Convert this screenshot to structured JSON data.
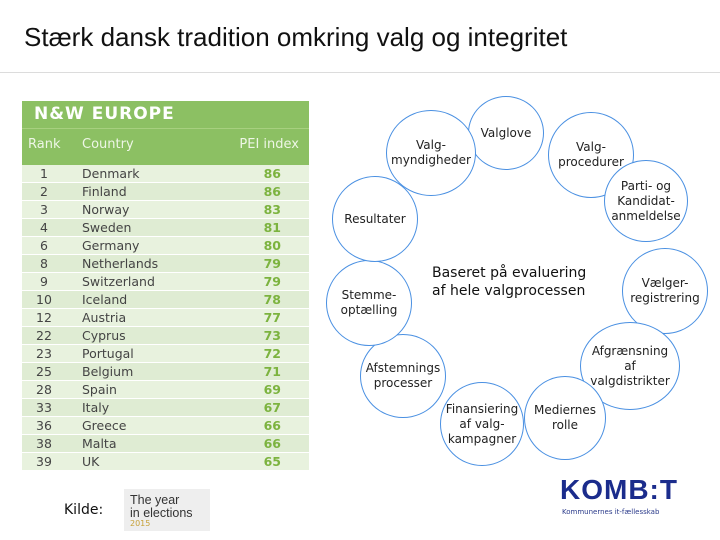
{
  "title": "Stærk dansk tradition omkring valg og integritet",
  "table": {
    "header": "N&W EUROPE",
    "col_rank": "Rank",
    "col_country": "Country",
    "col_pei": "PEI index",
    "rows": [
      {
        "rank": "1",
        "country": "Denmark",
        "pei": "86"
      },
      {
        "rank": "2",
        "country": "Finland",
        "pei": "86"
      },
      {
        "rank": "3",
        "country": "Norway",
        "pei": "83"
      },
      {
        "rank": "4",
        "country": "Sweden",
        "pei": "81"
      },
      {
        "rank": "6",
        "country": "Germany",
        "pei": "80"
      },
      {
        "rank": "8",
        "country": "Netherlands",
        "pei": "79"
      },
      {
        "rank": "9",
        "country": "Switzerland",
        "pei": "79"
      },
      {
        "rank": "10",
        "country": "Iceland",
        "pei": "78"
      },
      {
        "rank": "12",
        "country": "Austria",
        "pei": "77"
      },
      {
        "rank": "22",
        "country": "Cyprus",
        "pei": "73"
      },
      {
        "rank": "23",
        "country": "Portugal",
        "pei": "72"
      },
      {
        "rank": "25",
        "country": "Belgium",
        "pei": "71"
      },
      {
        "rank": "28",
        "country": "Spain",
        "pei": "69"
      },
      {
        "rank": "33",
        "country": "Italy",
        "pei": "67"
      },
      {
        "rank": "36",
        "country": "Greece",
        "pei": "66"
      },
      {
        "rank": "38",
        "country": "Malta",
        "pei": "66"
      },
      {
        "rank": "39",
        "country": "UK",
        "pei": "65"
      }
    ]
  },
  "cycle": {
    "center": [
      "Baseret på evaluering",
      "af hele valgprocessen"
    ],
    "bubbles": [
      {
        "lines": [
          "Valglove"
        ]
      },
      {
        "lines": [
          "Valg-",
          "procedurer"
        ]
      },
      {
        "lines": [
          "Parti- og",
          "Kandidat-",
          "anmeldelse"
        ]
      },
      {
        "lines": [
          "Vælger-",
          "registrering"
        ]
      },
      {
        "lines": [
          "Afgrænsning",
          "af",
          "valgdistrikter"
        ]
      },
      {
        "lines": [
          "Mediernes",
          "rolle"
        ]
      },
      {
        "lines": [
          "Finansiering",
          "af valg-",
          "kampagner"
        ]
      },
      {
        "lines": [
          "Afstemnings",
          "processer"
        ]
      },
      {
        "lines": [
          "Stemme-",
          "optælling"
        ]
      },
      {
        "lines": [
          "Resultater"
        ]
      },
      {
        "lines": [
          "Valg-",
          "myndigheder"
        ]
      }
    ]
  },
  "source": {
    "label": "Kilde:",
    "logo_line1": "The year",
    "logo_line2": "in elections",
    "logo_year": "2015"
  },
  "kombit": {
    "name": "KOMB:T",
    "tagline": "Kommunernes it-fællesskab"
  }
}
